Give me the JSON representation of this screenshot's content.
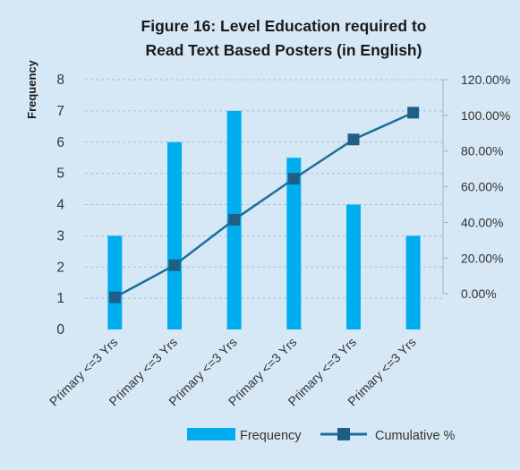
{
  "chart_data": {
    "type": "bar",
    "title_lines": [
      "Figure 16: Level Education required to",
      "Read Text Based Posters (in English)"
    ],
    "ylabel": "Frequency",
    "y_ticks": [
      "0",
      "1",
      "2",
      "3",
      "4",
      "5",
      "6",
      "7",
      "8"
    ],
    "ylim": [
      0,
      8
    ],
    "y2_ticks": [
      "0.00%",
      "20.00%",
      "40.00%",
      "60.00%",
      "80.00%",
      "100.00%",
      "120.00%"
    ],
    "y2lim": [
      -20,
      120
    ],
    "grid": true,
    "legend_position": "bottom",
    "categories": [
      "Primary <=3 Yrs",
      "Primary <=3 Yrs",
      "Primary <=3 Yrs",
      "Primary <=3 Yrs",
      "Primary <=3 Yrs",
      "Primary <=3 Yrs"
    ],
    "series": [
      {
        "name": "Frequency",
        "type": "bar",
        "axis": "left",
        "color": "#00aeef",
        "values": [
          3,
          6,
          7,
          5.5,
          4,
          3
        ]
      },
      {
        "name": "Cumulative %",
        "type": "line",
        "axis": "right",
        "color": "#1a6e9a",
        "marker_color": "#1f5f86",
        "values": [
          -2,
          16,
          41.5,
          64.5,
          86.5,
          101.5
        ]
      }
    ]
  }
}
